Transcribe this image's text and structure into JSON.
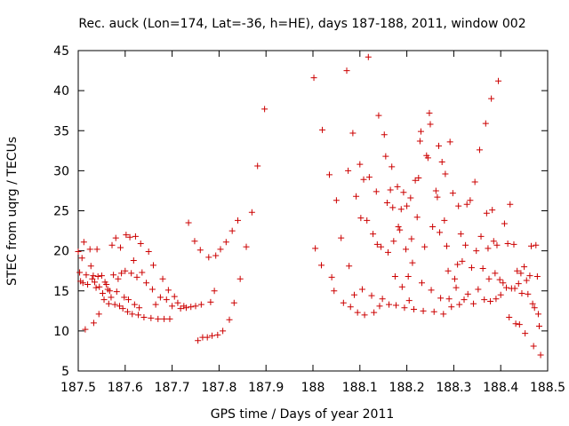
{
  "chart_data": {
    "type": "scatter",
    "title": "Rec. auck (Lon=174, Lat=-36, h=HE), days 187-188, 2011, window 002",
    "xlabel": "GPS time / Days of year 2011",
    "ylabel": "STEC from uqrg / TECUs",
    "xlim": [
      187.5,
      188.5
    ],
    "ylim": [
      5,
      45
    ],
    "xticks": [
      "187.5",
      "187.6",
      "187.7",
      "187.8",
      "187.9",
      "188",
      "188.1",
      "188.2",
      "188.3",
      "188.4",
      "188.5"
    ],
    "yticks": [
      "5",
      "10",
      "15",
      "20",
      "25",
      "30",
      "35",
      "40",
      "45"
    ],
    "grid": false,
    "legend": "none",
    "marker": "+",
    "color": "#cc0000",
    "points": [
      [
        187.5,
        19.9
      ],
      [
        187.503,
        17.3
      ],
      [
        187.505,
        16.2
      ],
      [
        187.508,
        19.1
      ],
      [
        187.51,
        16.0
      ],
      [
        187.512,
        21.1
      ],
      [
        187.515,
        10.2
      ],
      [
        187.517,
        17.0
      ],
      [
        187.52,
        15.8
      ],
      [
        187.525,
        20.2
      ],
      [
        187.527,
        18.1
      ],
      [
        187.53,
        16.5
      ],
      [
        187.532,
        16.9
      ],
      [
        187.533,
        11.0
      ],
      [
        187.535,
        16.1
      ],
      [
        187.538,
        15.4
      ],
      [
        187.54,
        20.2
      ],
      [
        187.542,
        16.8
      ],
      [
        187.544,
        12.1
      ],
      [
        187.545,
        15.5
      ],
      [
        187.55,
        16.9
      ],
      [
        187.552,
        14.7
      ],
      [
        187.555,
        13.9
      ],
      [
        187.557,
        16.1
      ],
      [
        187.56,
        15.8
      ],
      [
        187.563,
        15.2
      ],
      [
        187.565,
        13.4
      ],
      [
        187.567,
        15.0
      ],
      [
        187.57,
        14.2
      ],
      [
        187.572,
        20.7
      ],
      [
        187.575,
        17.0
      ],
      [
        187.578,
        13.3
      ],
      [
        187.58,
        21.6
      ],
      [
        187.582,
        14.9
      ],
      [
        187.585,
        16.5
      ],
      [
        187.588,
        13.1
      ],
      [
        187.59,
        20.4
      ],
      [
        187.592,
        17.2
      ],
      [
        187.595,
        12.8
      ],
      [
        187.598,
        14.2
      ],
      [
        187.6,
        17.5
      ],
      [
        187.602,
        22.0
      ],
      [
        187.605,
        12.4
      ],
      [
        187.607,
        13.9
      ],
      [
        187.61,
        21.7
      ],
      [
        187.613,
        17.2
      ],
      [
        187.615,
        12.1
      ],
      [
        187.618,
        18.8
      ],
      [
        187.62,
        13.3
      ],
      [
        187.622,
        21.8
      ],
      [
        187.625,
        16.7
      ],
      [
        187.628,
        12.0
      ],
      [
        187.63,
        12.9
      ],
      [
        187.633,
        20.9
      ],
      [
        187.636,
        17.3
      ],
      [
        187.64,
        11.7
      ],
      [
        187.645,
        16.0
      ],
      [
        187.65,
        19.9
      ],
      [
        187.655,
        11.6
      ],
      [
        187.658,
        15.2
      ],
      [
        187.66,
        18.2
      ],
      [
        187.665,
        13.3
      ],
      [
        187.67,
        11.5
      ],
      [
        187.675,
        14.2
      ],
      [
        187.68,
        16.5
      ],
      [
        187.683,
        11.5
      ],
      [
        187.688,
        13.9
      ],
      [
        187.692,
        15.1
      ],
      [
        187.695,
        11.5
      ],
      [
        187.7,
        13.1
      ],
      [
        187.705,
        14.3
      ],
      [
        187.712,
        13.5
      ],
      [
        187.718,
        12.8
      ],
      [
        187.725,
        13.1
      ],
      [
        187.73,
        12.9
      ],
      [
        187.735,
        23.5
      ],
      [
        187.74,
        13.0
      ],
      [
        187.748,
        21.2
      ],
      [
        187.75,
        13.1
      ],
      [
        187.755,
        8.8
      ],
      [
        187.76,
        20.1
      ],
      [
        187.762,
        13.3
      ],
      [
        187.765,
        9.2
      ],
      [
        187.775,
        9.2
      ],
      [
        187.778,
        19.2
      ],
      [
        187.782,
        13.6
      ],
      [
        187.785,
        9.4
      ],
      [
        187.79,
        15.0
      ],
      [
        187.793,
        19.4
      ],
      [
        187.797,
        9.5
      ],
      [
        187.803,
        20.2
      ],
      [
        187.808,
        10.0
      ],
      [
        187.815,
        21.1
      ],
      [
        187.822,
        11.4
      ],
      [
        187.828,
        22.5
      ],
      [
        187.832,
        13.5
      ],
      [
        187.84,
        23.8
      ],
      [
        187.845,
        16.5
      ],
      [
        187.858,
        20.5
      ],
      [
        187.87,
        24.8
      ],
      [
        187.882,
        30.6
      ],
      [
        187.897,
        37.7
      ],
      [
        188.002,
        41.6
      ],
      [
        188.005,
        20.3
      ],
      [
        188.018,
        18.2
      ],
      [
        188.02,
        35.1
      ],
      [
        188.035,
        29.5
      ],
      [
        188.04,
        16.7
      ],
      [
        188.045,
        15.0
      ],
      [
        188.05,
        26.3
      ],
      [
        188.06,
        21.6
      ],
      [
        188.065,
        13.5
      ],
      [
        188.072,
        42.5
      ],
      [
        188.075,
        30.0
      ],
      [
        188.077,
        18.1
      ],
      [
        188.08,
        13.0
      ],
      [
        188.085,
        34.7
      ],
      [
        188.088,
        14.5
      ],
      [
        188.092,
        26.8
      ],
      [
        188.095,
        12.3
      ],
      [
        188.1,
        30.8
      ],
      [
        188.102,
        24.1
      ],
      [
        188.105,
        15.2
      ],
      [
        188.108,
        28.9
      ],
      [
        188.11,
        12.0
      ],
      [
        188.115,
        23.8
      ],
      [
        188.118,
        44.2
      ],
      [
        188.12,
        29.2
      ],
      [
        188.125,
        14.4
      ],
      [
        188.128,
        22.1
      ],
      [
        188.13,
        12.3
      ],
      [
        188.135,
        27.4
      ],
      [
        188.137,
        20.8
      ],
      [
        188.14,
        36.9
      ],
      [
        188.142,
        13.1
      ],
      [
        188.145,
        20.5
      ],
      [
        188.148,
        14.0
      ],
      [
        188.152,
        34.5
      ],
      [
        188.155,
        31.8
      ],
      [
        188.158,
        26.0
      ],
      [
        188.16,
        19.8
      ],
      [
        188.162,
        13.3
      ],
      [
        188.165,
        27.6
      ],
      [
        188.168,
        30.5
      ],
      [
        188.17,
        25.4
      ],
      [
        188.172,
        21.2
      ],
      [
        188.175,
        16.8
      ],
      [
        188.177,
        13.2
      ],
      [
        188.18,
        28.0
      ],
      [
        188.182,
        23.0
      ],
      [
        188.185,
        22.6
      ],
      [
        188.188,
        25.2
      ],
      [
        188.19,
        15.5
      ],
      [
        188.193,
        27.3
      ],
      [
        188.195,
        12.9
      ],
      [
        188.198,
        20.2
      ],
      [
        188.2,
        25.6
      ],
      [
        188.203,
        16.8
      ],
      [
        188.205,
        13.8
      ],
      [
        188.208,
        26.6
      ],
      [
        188.21,
        21.5
      ],
      [
        188.212,
        18.5
      ],
      [
        188.215,
        12.7
      ],
      [
        188.218,
        28.8
      ],
      [
        188.222,
        24.2
      ],
      [
        188.225,
        29.1
      ],
      [
        188.228,
        33.7
      ],
      [
        188.23,
        34.9
      ],
      [
        188.232,
        16.0
      ],
      [
        188.235,
        12.5
      ],
      [
        188.238,
        20.5
      ],
      [
        188.242,
        31.9
      ],
      [
        188.245,
        31.6
      ],
      [
        188.248,
        37.2
      ],
      [
        188.25,
        35.8
      ],
      [
        188.252,
        15.1
      ],
      [
        188.255,
        23.0
      ],
      [
        188.258,
        12.4
      ],
      [
        188.262,
        27.5
      ],
      [
        188.265,
        26.7
      ],
      [
        188.268,
        33.1
      ],
      [
        188.27,
        22.3
      ],
      [
        188.272,
        14.1
      ],
      [
        188.275,
        31.1
      ],
      [
        188.278,
        12.1
      ],
      [
        188.28,
        23.8
      ],
      [
        188.282,
        29.6
      ],
      [
        188.285,
        20.6
      ],
      [
        188.288,
        17.5
      ],
      [
        188.29,
        14.0
      ],
      [
        188.292,
        33.6
      ],
      [
        188.295,
        13.0
      ],
      [
        188.298,
        27.2
      ],
      [
        188.302,
        16.5
      ],
      [
        188.305,
        15.4
      ],
      [
        188.308,
        18.3
      ],
      [
        188.31,
        25.6
      ],
      [
        188.312,
        13.3
      ],
      [
        188.315,
        22.1
      ],
      [
        188.318,
        18.7
      ],
      [
        188.322,
        13.9
      ],
      [
        188.325,
        20.7
      ],
      [
        188.328,
        25.8
      ],
      [
        188.33,
        14.6
      ],
      [
        188.335,
        26.3
      ],
      [
        188.338,
        17.9
      ],
      [
        188.342,
        13.4
      ],
      [
        188.345,
        28.6
      ],
      [
        188.348,
        20.0
      ],
      [
        188.352,
        15.2
      ],
      [
        188.355,
        32.6
      ],
      [
        188.358,
        21.8
      ],
      [
        188.362,
        17.8
      ],
      [
        188.365,
        13.9
      ],
      [
        188.368,
        35.9
      ],
      [
        188.37,
        24.7
      ],
      [
        188.373,
        20.3
      ],
      [
        188.375,
        16.5
      ],
      [
        188.378,
        13.7
      ],
      [
        188.38,
        39.0
      ],
      [
        188.382,
        25.1
      ],
      [
        188.385,
        21.2
      ],
      [
        188.388,
        17.2
      ],
      [
        188.39,
        14.0
      ],
      [
        188.392,
        20.7
      ],
      [
        188.395,
        41.2
      ],
      [
        188.398,
        16.4
      ],
      [
        188.4,
        14.5
      ],
      [
        188.405,
        16.0
      ],
      [
        188.408,
        23.4
      ],
      [
        188.412,
        15.4
      ],
      [
        188.415,
        20.9
      ],
      [
        188.418,
        11.7
      ],
      [
        188.42,
        25.8
      ],
      [
        188.423,
        15.3
      ],
      [
        188.428,
        20.8
      ],
      [
        188.43,
        15.3
      ],
      [
        188.432,
        10.9
      ],
      [
        188.435,
        17.5
      ],
      [
        188.438,
        15.9
      ],
      [
        188.44,
        10.8
      ],
      [
        188.443,
        17.2
      ],
      [
        188.445,
        14.7
      ],
      [
        188.45,
        18.0
      ],
      [
        188.452,
        9.7
      ],
      [
        188.455,
        16.3
      ],
      [
        188.458,
        14.6
      ],
      [
        188.462,
        16.9
      ],
      [
        188.465,
        20.6
      ],
      [
        188.468,
        13.4
      ],
      [
        188.47,
        8.1
      ],
      [
        188.472,
        12.9
      ],
      [
        188.475,
        20.7
      ],
      [
        188.478,
        16.8
      ],
      [
        188.48,
        12.1
      ],
      [
        188.482,
        10.6
      ],
      [
        188.485,
        7.0
      ]
    ]
  }
}
